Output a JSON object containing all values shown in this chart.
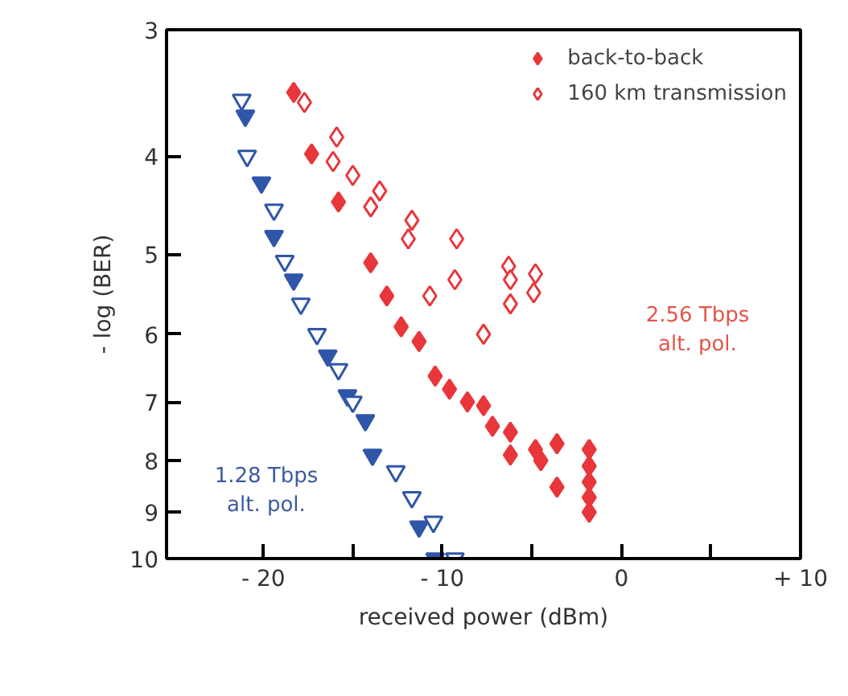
{
  "chart_data": {
    "type": "scatter",
    "xlabel": "received power (dBm)",
    "ylabel": "- log (BER)",
    "xlim": [
      -25.4,
      10
    ],
    "ylim": [
      10,
      3
    ],
    "log": "y",
    "xticks": [
      {
        "value": -20,
        "label": "- 20"
      },
      {
        "value": -15,
        "label": null
      },
      {
        "value": -10,
        "label": "- 10"
      },
      {
        "value": -5,
        "label": null
      },
      0,
      {
        "value": 5,
        "label": null
      },
      {
        "value": 10,
        "label": "+ 10"
      }
    ],
    "yticks": [
      3,
      4,
      5,
      6,
      7,
      8,
      9,
      10
    ],
    "grid": false,
    "legend": "top right",
    "series": [
      {
        "color": "#2f56a8",
        "marker": "triangle",
        "x": [
          -21.0,
          -20.1,
          -19.4,
          -18.3,
          -16.4,
          -15.3,
          -14.3,
          -13.9,
          -11.3,
          -10.4
        ],
        "values": [
          3.65,
          4.25,
          4.8,
          5.3,
          6.3,
          6.9,
          7.3,
          7.9,
          9.3,
          10.0
        ]
      },
      {
        "name": "back-to-back",
        "color": "#e8363a",
        "marker": "diamond",
        "x": [
          -18.3,
          -17.3,
          -15.8,
          -14.0,
          -13.1,
          -12.3,
          -11.3,
          -10.4,
          -9.6,
          -8.6,
          -7.7,
          -7.2,
          -6.2,
          -6.2,
          -4.8,
          -4.5,
          -3.6,
          -3.6,
          -1.8,
          -1.8,
          -1.8,
          -1.8,
          -1.8
        ],
        "values": [
          3.46,
          3.98,
          4.44,
          5.1,
          5.5,
          5.9,
          6.1,
          6.6,
          6.8,
          7.0,
          7.06,
          7.4,
          7.5,
          7.9,
          7.8,
          8.0,
          7.7,
          8.5,
          7.8,
          8.1,
          8.4,
          8.7,
          9.0
        ]
      },
      {
        "color": "#2f56a8",
        "marker": "triangle",
        "x": [
          -21.2,
          -20.9,
          -19.4,
          -18.8,
          -17.9,
          -17.0,
          -15.8,
          -15.0,
          -12.6,
          -11.7,
          -10.5,
          -9.3
        ],
        "values": [
          3.52,
          4.0,
          4.52,
          5.08,
          5.6,
          6.0,
          6.5,
          7.0,
          8.2,
          8.7,
          9.2,
          10.0
        ]
      },
      {
        "name": "160 km transmission",
        "color": "#e8363a",
        "marker": "diamond",
        "x": [
          -17.7,
          -15.9,
          -16.1,
          -15.0,
          -13.5,
          -14.0,
          -11.7,
          -11.9,
          -9.2,
          -9.3,
          -10.7,
          -6.3,
          -4.8,
          -6.2,
          -4.9,
          -6.2,
          -7.7
        ],
        "values": [
          3.54,
          3.83,
          4.05,
          4.18,
          4.33,
          4.49,
          4.63,
          4.83,
          4.83,
          5.3,
          5.5,
          5.14,
          5.23,
          5.3,
          5.46,
          5.6,
          6.0
        ]
      }
    ],
    "annotations": [
      "2.56 Tbps\nalt. pol.",
      "1.28 Tbps\nalt. pol."
    ]
  }
}
